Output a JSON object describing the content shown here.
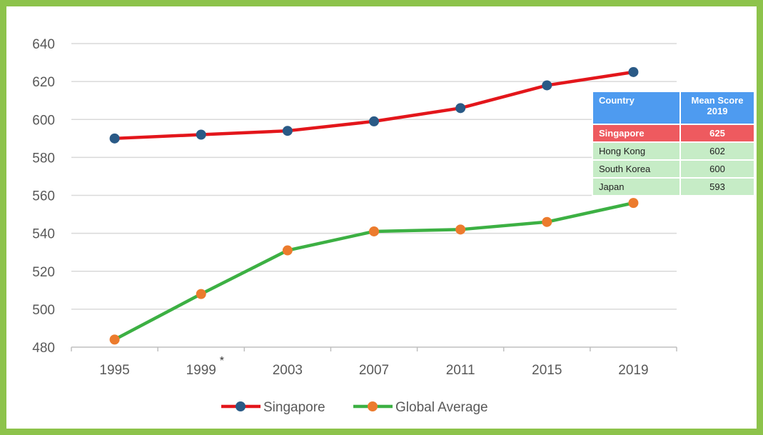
{
  "chart_data": {
    "type": "line",
    "title": "",
    "xlabel": "",
    "ylabel": "",
    "x": [
      "1995",
      "1999",
      "2003",
      "2007",
      "2011",
      "2015",
      "2019"
    ],
    "x_annotation": {
      "category": "1999",
      "text": "*"
    },
    "ylim": [
      480,
      640
    ],
    "yticks": [
      480,
      500,
      520,
      540,
      560,
      580,
      600,
      620,
      640
    ],
    "grid": true,
    "legend_position": "bottom",
    "series": [
      {
        "name": "Singapore",
        "values": [
          590,
          592,
          594,
          599,
          606,
          618,
          625
        ],
        "line_color": "#e3161b",
        "marker_color": "#2a5a86"
      },
      {
        "name": "Global Average",
        "values": [
          484,
          508,
          531,
          541,
          542,
          546,
          556
        ],
        "line_color": "#3cb043",
        "marker_color": "#ec7b2d"
      }
    ]
  },
  "table": {
    "headers": [
      "Country",
      "Mean Score 2019"
    ],
    "rows": [
      {
        "country": "Singapore",
        "score": "625"
      },
      {
        "country": "Hong Kong",
        "score": "602"
      },
      {
        "country": "South Korea",
        "score": "600"
      },
      {
        "country": "Japan",
        "score": "593"
      }
    ]
  }
}
